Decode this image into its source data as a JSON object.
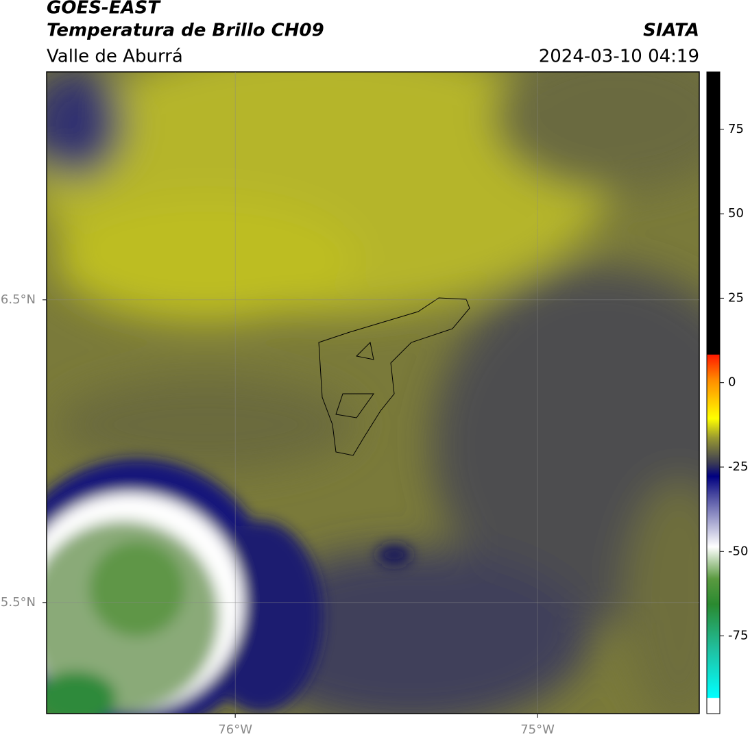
{
  "header": {
    "title": "GOES-EAST",
    "subtitle": "Temperatura de Brillo CH09",
    "region": "Valle de Aburrá",
    "source": "SIATA",
    "datetime": "2024-03-10 04:19"
  },
  "map": {
    "lonlim": [
      -76.624,
      -74.465
    ],
    "latlim": [
      5.133,
      7.253
    ],
    "grid": true,
    "xticks": [
      {
        "value": -76,
        "label": "76°W"
      },
      {
        "value": -75,
        "label": "75°W"
      }
    ],
    "yticks": [
      {
        "value": 6.5,
        "label": "6.5°N"
      },
      {
        "value": 5.5,
        "label": "5.5°N"
      }
    ]
  },
  "colorbar": {
    "lim": [
      -98,
      92
    ],
    "ticks": [
      75,
      50,
      25,
      0,
      -25,
      -50,
      -75
    ]
  }
}
